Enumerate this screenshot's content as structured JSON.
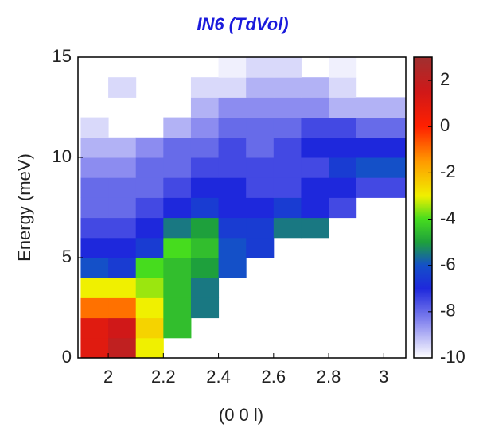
{
  "chart_data": {
    "type": "heatmap",
    "title": "IN6 (TdVol)",
    "xlabel": "(0 0 l)",
    "ylabel": "Energy (meV)",
    "x": [
      1.95,
      2.05,
      2.15,
      2.25,
      2.35,
      2.45,
      2.55,
      2.65,
      2.75,
      2.85,
      2.95,
      3.05
    ],
    "y": [
      0.5,
      1.5,
      2.5,
      3.5,
      4.5,
      5.5,
      6.5,
      7.5,
      8.5,
      9.5,
      10.5,
      11.5,
      12.5,
      13.5,
      14.5
    ],
    "z": [
      [
        1,
        2,
        -3,
        null,
        null,
        null,
        null,
        null,
        null,
        null,
        null,
        null
      ],
      [
        1,
        1.5,
        -2.5,
        -4.5,
        null,
        null,
        null,
        null,
        null,
        null,
        null,
        null
      ],
      [
        -1,
        -1,
        -3,
        -4.5,
        -5.5,
        null,
        null,
        null,
        null,
        null,
        null,
        null
      ],
      [
        -3,
        -3,
        -3.5,
        -4.5,
        -5.5,
        null,
        null,
        null,
        null,
        null,
        null,
        null
      ],
      [
        -6,
        -6.5,
        -4,
        -4.5,
        -5,
        -6,
        null,
        null,
        null,
        null,
        null,
        null
      ],
      [
        -7,
        -7,
        -6.5,
        -4,
        -4.5,
        -6,
        -6.5,
        null,
        null,
        null,
        null,
        null
      ],
      [
        -7.5,
        -7.5,
        -7,
        -5.5,
        -5,
        -6.5,
        -6.5,
        -5.5,
        -5.5,
        null,
        null,
        null
      ],
      [
        -8,
        -8,
        -7.5,
        -7,
        -6.5,
        -7,
        -7,
        -6.5,
        -7,
        -7.5,
        null,
        null
      ],
      [
        -8,
        -8,
        -8,
        -7.5,
        -7,
        -7,
        -7.5,
        -7.5,
        -7,
        -7,
        -7.5,
        -7.5
      ],
      [
        -8.5,
        -8.5,
        -8,
        -8,
        -7.5,
        -7.5,
        -7.5,
        -7.5,
        -7.5,
        -6.5,
        -6,
        -6
      ],
      [
        -9,
        -9,
        -8.5,
        -8,
        -8,
        -7.5,
        -8,
        -7.5,
        -7,
        -7,
        -7,
        -7
      ],
      [
        -9.5,
        null,
        null,
        -9,
        -8.5,
        -8,
        -8,
        -8,
        -7.5,
        -7.5,
        -8,
        -8
      ],
      [
        null,
        null,
        null,
        null,
        -9,
        -8.5,
        -8.5,
        -8.5,
        -8.5,
        -9,
        -9,
        -9
      ],
      [
        null,
        -9.5,
        null,
        null,
        -9.5,
        -9.5,
        -9,
        -9,
        -9,
        -9.5,
        null,
        null
      ],
      [
        null,
        null,
        null,
        null,
        null,
        -9.8,
        -9.5,
        -9.5,
        null,
        -9.8,
        null,
        null
      ]
    ],
    "xlim": [
      1.89,
      3.08
    ],
    "ylim": [
      0,
      15
    ],
    "xticks": [
      2,
      2.2,
      2.4,
      2.6,
      2.8,
      3
    ],
    "yticks": [
      0,
      5,
      10,
      15
    ],
    "clim": [
      -10,
      3
    ],
    "cticks": [
      -10,
      -8,
      -6,
      -4,
      -2,
      0,
      2
    ],
    "colorscale": [
      [
        -10,
        "#ffffff"
      ],
      [
        -8.5,
        "#8c8cf0"
      ],
      [
        -7,
        "#1e28dc"
      ],
      [
        -6,
        "#1450c8"
      ],
      [
        -5,
        "#1ea03c"
      ],
      [
        -4,
        "#46dc1e"
      ],
      [
        -3,
        "#f0f000"
      ],
      [
        -1.5,
        "#ff9a00"
      ],
      [
        0,
        "#ff2000"
      ],
      [
        1.5,
        "#d01818"
      ],
      [
        3,
        "#a03030"
      ]
    ]
  }
}
